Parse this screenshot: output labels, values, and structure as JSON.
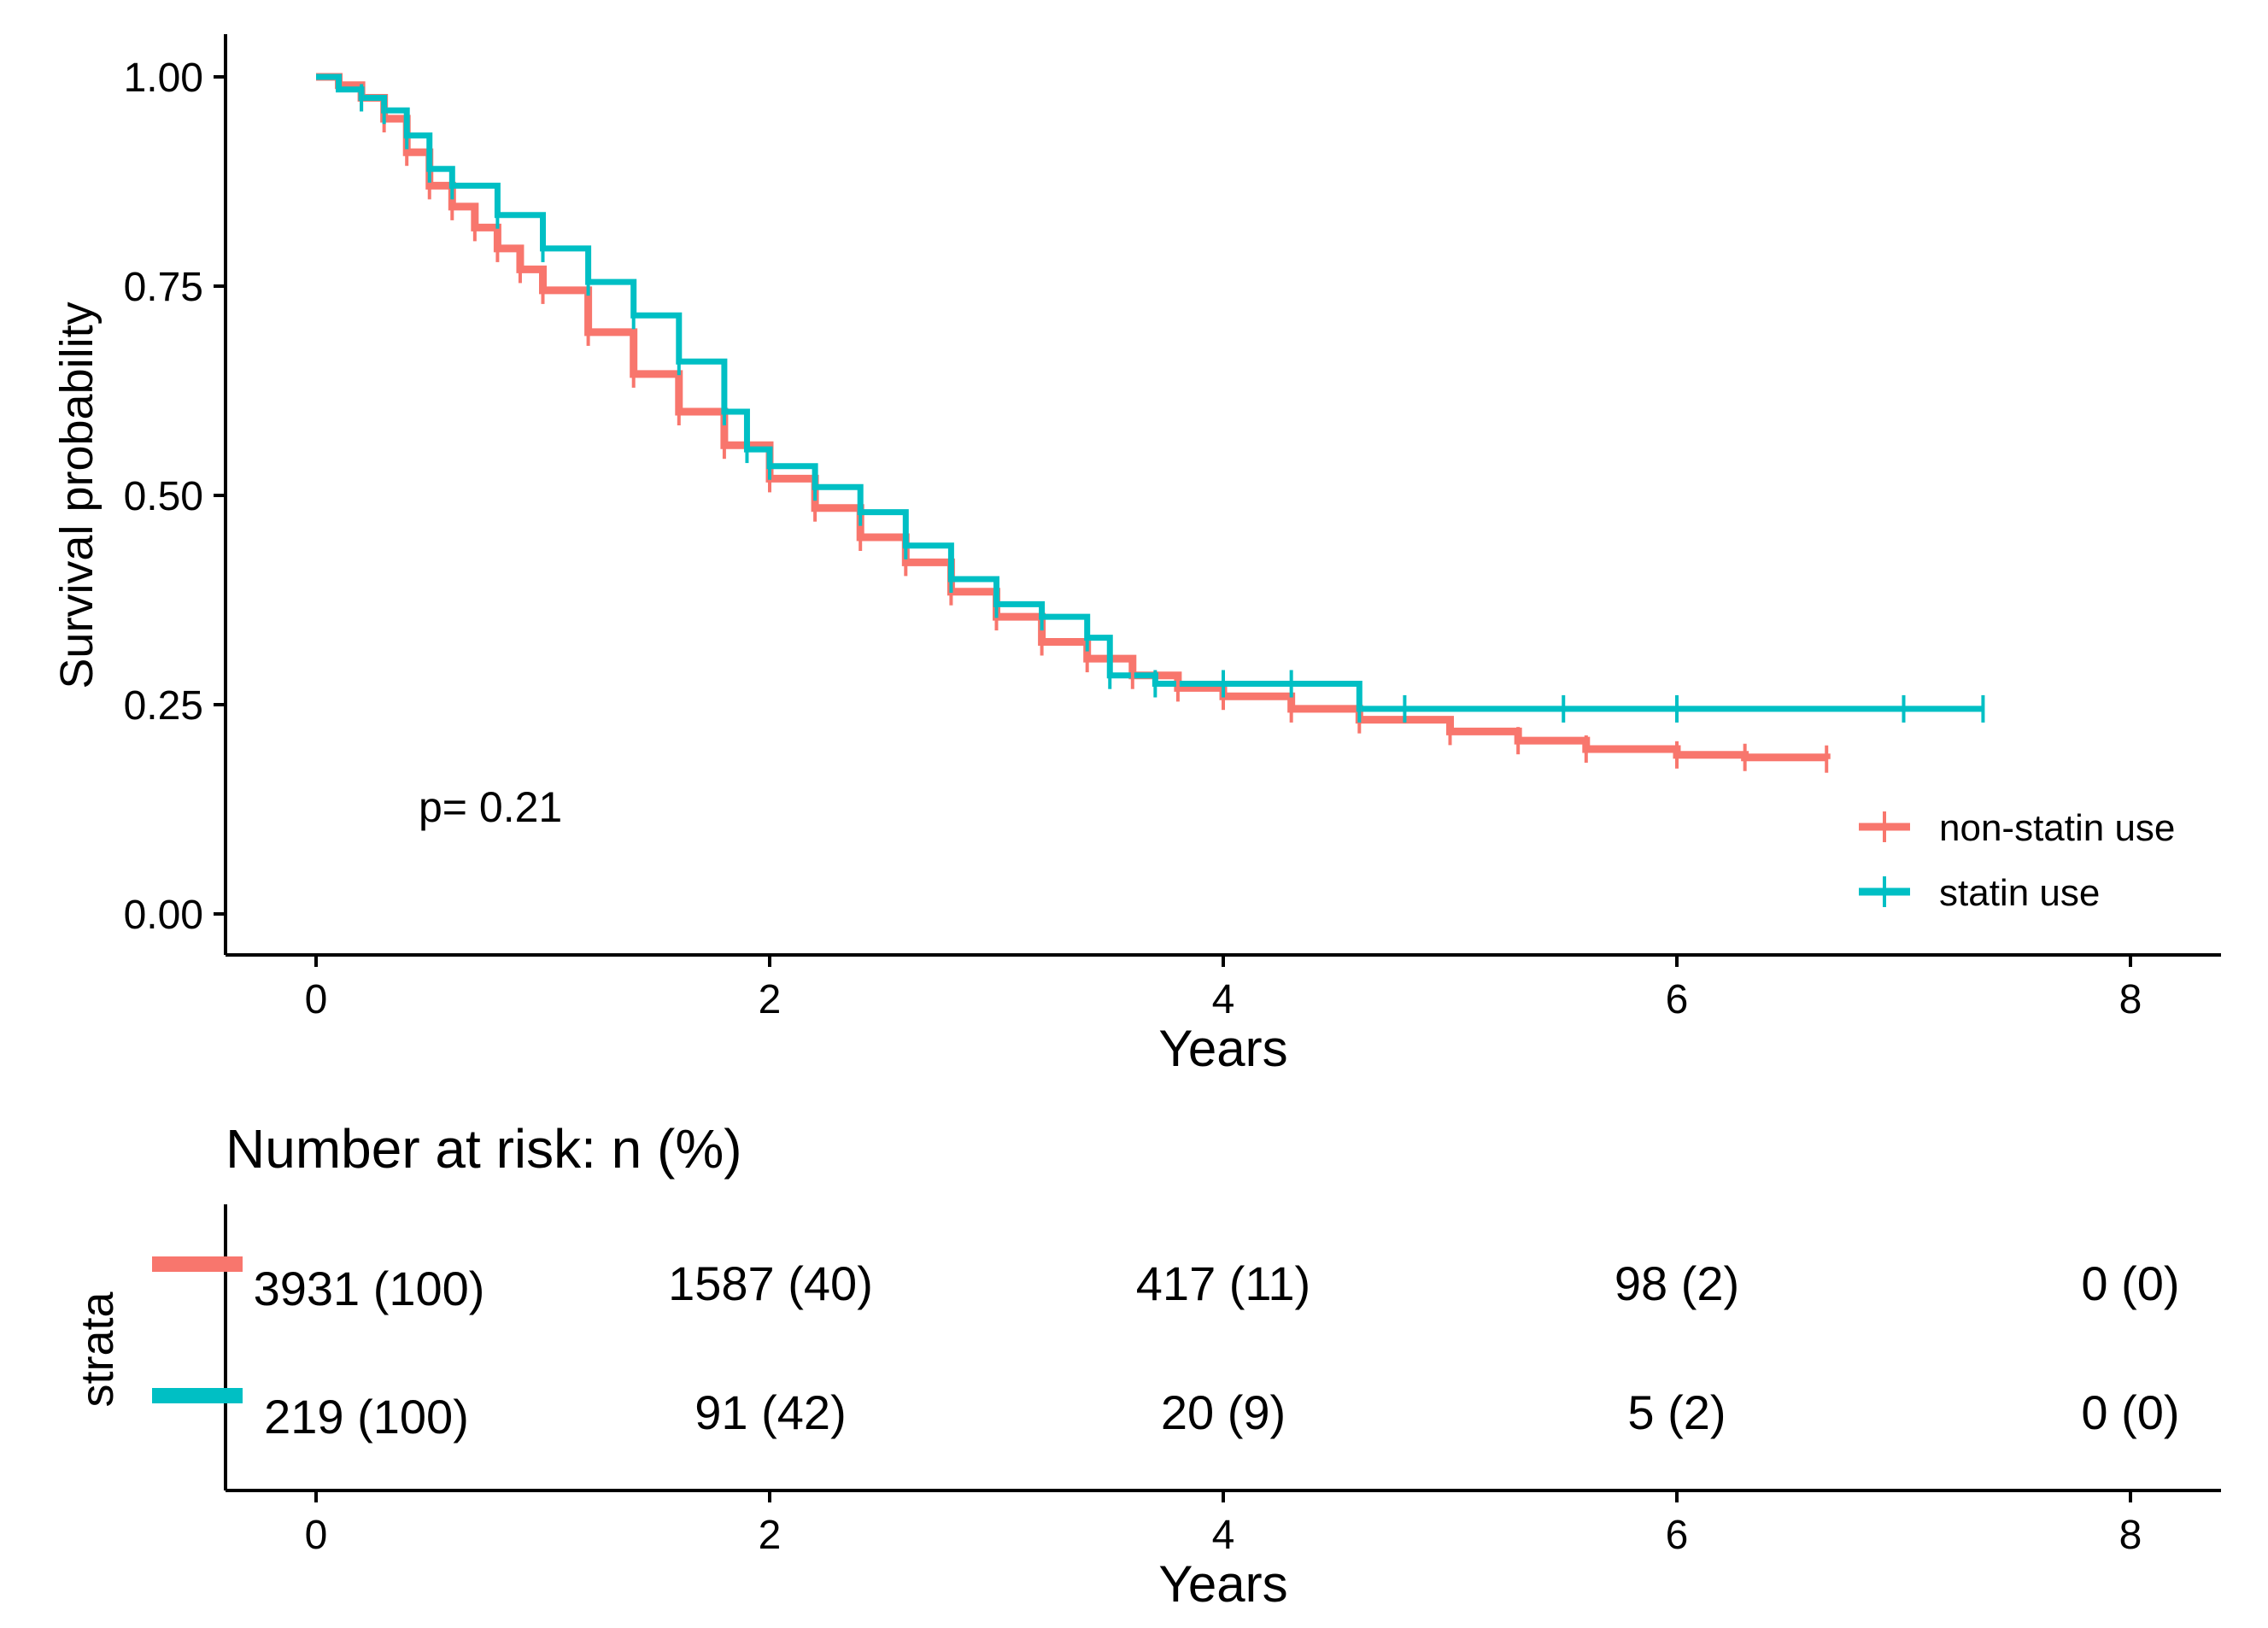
{
  "colors": {
    "non_statin": "#F8766D",
    "statin": "#00BFC4",
    "axis": "#000000"
  },
  "chart_data": [
    {
      "type": "line",
      "subtype": "kaplan-meier",
      "title": "",
      "xlabel": "Years",
      "ylabel": "Survival probability",
      "xlim": [
        -0.4,
        8.4
      ],
      "ylim": [
        -0.04,
        1.05
      ],
      "xticks": [
        "0",
        "2",
        "4",
        "6",
        "8"
      ],
      "xtick_values": [
        0,
        2,
        4,
        6,
        8
      ],
      "yticks": [
        "0.00",
        "0.25",
        "0.50",
        "0.75",
        "1.00"
      ],
      "ytick_values": [
        0,
        0.25,
        0.5,
        0.75,
        1.0
      ],
      "grid": false,
      "legend_position": "bottom-right",
      "annotation": "p= 0.21",
      "series": [
        {
          "name": "non-statin use",
          "color": "#F8766D",
          "x": [
            0,
            0.1,
            0.2,
            0.3,
            0.4,
            0.5,
            0.6,
            0.7,
            0.8,
            0.9,
            1.0,
            1.2,
            1.4,
            1.6,
            1.8,
            2.0,
            2.2,
            2.4,
            2.6,
            2.8,
            3.0,
            3.2,
            3.4,
            3.6,
            3.8,
            4.0,
            4.3,
            4.6,
            5.0,
            5.3,
            5.6,
            6.0,
            6.3,
            6.66
          ],
          "y": [
            1.0,
            0.99,
            0.975,
            0.95,
            0.91,
            0.87,
            0.845,
            0.82,
            0.795,
            0.77,
            0.745,
            0.695,
            0.645,
            0.6,
            0.56,
            0.52,
            0.485,
            0.45,
            0.42,
            0.385,
            0.355,
            0.325,
            0.305,
            0.285,
            0.27,
            0.26,
            0.245,
            0.232,
            0.218,
            0.207,
            0.197,
            0.19,
            0.187,
            0.185
          ]
        },
        {
          "name": "statin use",
          "color": "#00BFC4",
          "x": [
            0,
            0.1,
            0.2,
            0.3,
            0.4,
            0.5,
            0.6,
            0.8,
            1.0,
            1.2,
            1.4,
            1.6,
            1.8,
            1.9,
            2.0,
            2.2,
            2.4,
            2.6,
            2.8,
            3.0,
            3.2,
            3.4,
            3.5,
            3.7,
            4.0,
            4.3,
            4.6,
            4.8,
            5.5,
            6.0,
            7.0,
            7.35
          ],
          "y": [
            1.0,
            0.985,
            0.975,
            0.96,
            0.93,
            0.89,
            0.87,
            0.835,
            0.795,
            0.755,
            0.715,
            0.66,
            0.6,
            0.555,
            0.535,
            0.51,
            0.48,
            0.44,
            0.4,
            0.37,
            0.355,
            0.33,
            0.285,
            0.275,
            0.275,
            0.275,
            0.245,
            0.245,
            0.245,
            0.245,
            0.245,
            0.245
          ]
        }
      ]
    },
    {
      "type": "table",
      "title": "Number at risk: n (%)",
      "xlabel": "Years",
      "ylabel": "strata",
      "xlim": [
        -0.4,
        8.4
      ],
      "xticks": [
        "0",
        "2",
        "4",
        "6",
        "8"
      ],
      "xtick_values": [
        0,
        2,
        4,
        6,
        8
      ],
      "rows": [
        {
          "strata": "non-statin use",
          "color": "#F8766D",
          "values": [
            "3931 (100)",
            "1587 (40)",
            "417 (11)",
            "98 (2)",
            "0 (0)"
          ]
        },
        {
          "strata": "statin use",
          "color": "#00BFC4",
          "values": [
            "219 (100)",
            "91 (42)",
            "20 (9)",
            "5 (2)",
            "0 (0)"
          ]
        }
      ]
    }
  ]
}
